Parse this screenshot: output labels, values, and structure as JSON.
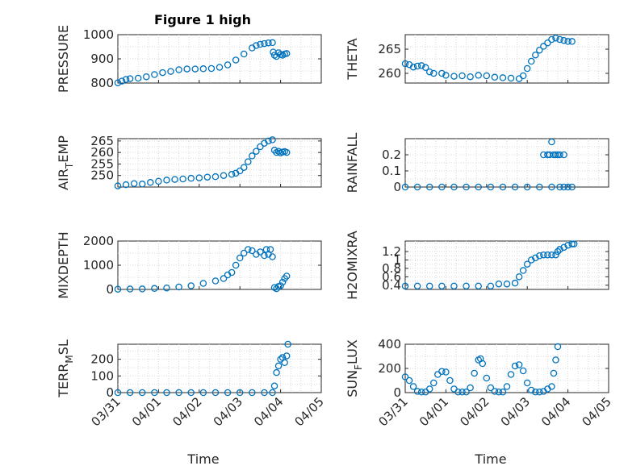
{
  "figure_title": "Figure 1 high",
  "colors": {
    "marker": "#0072bd",
    "axis": "#262626",
    "grid": "#d9d9d9"
  },
  "chart_data": [
    {
      "type": "scatter",
      "ylabel": "PRESSURE",
      "ylim": [
        800,
        1000
      ],
      "yticks": [
        "800",
        "900",
        "1000"
      ],
      "grid": true,
      "xlim": [
        "03/31",
        "04/05"
      ],
      "points": [
        [
          0.0,
          801
        ],
        [
          0.1,
          808
        ],
        [
          0.2,
          815
        ],
        [
          0.3,
          818
        ],
        [
          0.5,
          820
        ],
        [
          0.7,
          826
        ],
        [
          0.9,
          835
        ],
        [
          1.1,
          843
        ],
        [
          1.3,
          848
        ],
        [
          1.5,
          855
        ],
        [
          1.7,
          858
        ],
        [
          1.9,
          858
        ],
        [
          2.1,
          859
        ],
        [
          2.3,
          860
        ],
        [
          2.5,
          865
        ],
        [
          2.7,
          875
        ],
        [
          2.9,
          895
        ],
        [
          3.1,
          920
        ],
        [
          3.3,
          945
        ],
        [
          3.4,
          955
        ],
        [
          3.5,
          960
        ],
        [
          3.6,
          963
        ],
        [
          3.7,
          966
        ],
        [
          3.8,
          967
        ],
        [
          3.82,
          928
        ],
        [
          3.85,
          915
        ],
        [
          3.9,
          910
        ],
        [
          3.95,
          925
        ],
        [
          4.0,
          918
        ],
        [
          4.05,
          915
        ],
        [
          4.1,
          920
        ],
        [
          4.15,
          922
        ]
      ]
    },
    {
      "type": "scatter",
      "ylabel": "THETA",
      "ylim": [
        258,
        268
      ],
      "yticks": [
        "260",
        "265"
      ],
      "grid": true,
      "xlim": [
        "03/31",
        "04/05"
      ],
      "points": [
        [
          0.0,
          262
        ],
        [
          0.1,
          261.8
        ],
        [
          0.2,
          261.3
        ],
        [
          0.3,
          261.5
        ],
        [
          0.4,
          261.6
        ],
        [
          0.5,
          261.2
        ],
        [
          0.6,
          260.3
        ],
        [
          0.7,
          260.0
        ],
        [
          0.9,
          260.0
        ],
        [
          1.0,
          259.6
        ],
        [
          1.2,
          259.4
        ],
        [
          1.4,
          259.5
        ],
        [
          1.6,
          259.3
        ],
        [
          1.8,
          259.6
        ],
        [
          2.0,
          259.5
        ],
        [
          2.2,
          259.2
        ],
        [
          2.4,
          259.1
        ],
        [
          2.6,
          259.0
        ],
        [
          2.8,
          258.9
        ],
        [
          2.9,
          259.5
        ],
        [
          3.0,
          261.0
        ],
        [
          3.1,
          262.5
        ],
        [
          3.2,
          263.8
        ],
        [
          3.3,
          264.8
        ],
        [
          3.4,
          265.6
        ],
        [
          3.5,
          266.3
        ],
        [
          3.6,
          267.0
        ],
        [
          3.7,
          267.3
        ],
        [
          3.8,
          267.0
        ],
        [
          3.9,
          266.8
        ],
        [
          4.0,
          266.6
        ],
        [
          4.1,
          266.6
        ]
      ]
    },
    {
      "type": "scatter",
      "ylabel": "AIR_TEMP",
      "ylim": [
        245,
        266
      ],
      "yticks": [
        "250",
        "255",
        "260",
        "265"
      ],
      "grid": true,
      "xlim": [
        "03/31",
        "04/05"
      ],
      "points": [
        [
          0.0,
          245.5
        ],
        [
          0.2,
          246.0
        ],
        [
          0.4,
          246.5
        ],
        [
          0.6,
          246.3
        ],
        [
          0.8,
          247.0
        ],
        [
          1.0,
          247.5
        ],
        [
          1.2,
          248.0
        ],
        [
          1.4,
          248.3
        ],
        [
          1.6,
          248.5
        ],
        [
          1.8,
          248.8
        ],
        [
          2.0,
          249.0
        ],
        [
          2.2,
          249.3
        ],
        [
          2.4,
          249.5
        ],
        [
          2.6,
          250.0
        ],
        [
          2.8,
          250.5
        ],
        [
          2.9,
          251.0
        ],
        [
          3.0,
          252.0
        ],
        [
          3.1,
          253.5
        ],
        [
          3.2,
          256.0
        ],
        [
          3.3,
          258.5
        ],
        [
          3.4,
          260.5
        ],
        [
          3.5,
          262.5
        ],
        [
          3.6,
          264.0
        ],
        [
          3.7,
          265.0
        ],
        [
          3.8,
          265.5
        ],
        [
          3.85,
          261.0
        ],
        [
          3.9,
          260.0
        ],
        [
          3.95,
          260.5
        ],
        [
          4.0,
          259.8
        ],
        [
          4.05,
          260.2
        ],
        [
          4.1,
          260.4
        ],
        [
          4.15,
          260.0
        ]
      ]
    },
    {
      "type": "scatter",
      "ylabel": "RAINFALL",
      "ylim": [
        0,
        0.3
      ],
      "yticks": [
        "0",
        "0.1",
        "0.2"
      ],
      "grid": true,
      "xlim": [
        "03/31",
        "04/05"
      ],
      "points": [
        [
          0.0,
          0
        ],
        [
          0.3,
          0
        ],
        [
          0.6,
          0
        ],
        [
          0.9,
          0
        ],
        [
          1.2,
          0
        ],
        [
          1.5,
          0
        ],
        [
          1.8,
          0
        ],
        [
          2.1,
          0
        ],
        [
          2.4,
          0
        ],
        [
          2.7,
          0
        ],
        [
          3.0,
          0
        ],
        [
          3.3,
          0
        ],
        [
          3.4,
          0.2
        ],
        [
          3.5,
          0.2
        ],
        [
          3.55,
          0.2
        ],
        [
          3.6,
          0.28
        ],
        [
          3.65,
          0.2
        ],
        [
          3.7,
          0.2
        ],
        [
          3.75,
          0.2
        ],
        [
          3.8,
          0.2
        ],
        [
          3.9,
          0.2
        ],
        [
          3.6,
          0
        ],
        [
          3.8,
          0
        ],
        [
          3.9,
          0
        ],
        [
          4.0,
          0
        ],
        [
          4.1,
          0
        ]
      ]
    },
    {
      "type": "scatter",
      "ylabel": "MIXDEPTH",
      "ylim": [
        0,
        2000
      ],
      "yticks": [
        "0",
        "1000",
        "2000"
      ],
      "grid": true,
      "xlim": [
        "03/31",
        "04/05"
      ],
      "points": [
        [
          0.0,
          10
        ],
        [
          0.3,
          15
        ],
        [
          0.6,
          20
        ],
        [
          0.9,
          40
        ],
        [
          1.2,
          60
        ],
        [
          1.5,
          100
        ],
        [
          1.8,
          150
        ],
        [
          2.1,
          250
        ],
        [
          2.4,
          350
        ],
        [
          2.6,
          450
        ],
        [
          2.7,
          600
        ],
        [
          2.8,
          700
        ],
        [
          2.9,
          1000
        ],
        [
          3.0,
          1300
        ],
        [
          3.1,
          1500
        ],
        [
          3.2,
          1650
        ],
        [
          3.3,
          1600
        ],
        [
          3.4,
          1450
        ],
        [
          3.5,
          1550
        ],
        [
          3.6,
          1400
        ],
        [
          3.65,
          1650
        ],
        [
          3.7,
          1450
        ],
        [
          3.75,
          1650
        ],
        [
          3.8,
          1350
        ],
        [
          3.85,
          80
        ],
        [
          3.9,
          30
        ],
        [
          3.95,
          120
        ],
        [
          4.0,
          150
        ],
        [
          4.05,
          300
        ],
        [
          4.1,
          450
        ],
        [
          4.15,
          550
        ]
      ]
    },
    {
      "type": "scatter",
      "ylabel": "H2OMIXRA",
      "ylim": [
        0.3,
        1.45
      ],
      "yticks": [
        "0.4",
        "0.6",
        "0.8",
        "1",
        "1.2"
      ],
      "grid": true,
      "xlim": [
        "03/31",
        "04/05"
      ],
      "points": [
        [
          0.0,
          0.38
        ],
        [
          0.3,
          0.38
        ],
        [
          0.6,
          0.38
        ],
        [
          0.9,
          0.38
        ],
        [
          1.2,
          0.38
        ],
        [
          1.5,
          0.38
        ],
        [
          1.8,
          0.38
        ],
        [
          2.1,
          0.38
        ],
        [
          2.3,
          0.43
        ],
        [
          2.5,
          0.43
        ],
        [
          2.7,
          0.45
        ],
        [
          2.8,
          0.6
        ],
        [
          2.9,
          0.75
        ],
        [
          3.0,
          0.9
        ],
        [
          3.1,
          1.0
        ],
        [
          3.2,
          1.05
        ],
        [
          3.3,
          1.1
        ],
        [
          3.4,
          1.12
        ],
        [
          3.5,
          1.12
        ],
        [
          3.6,
          1.12
        ],
        [
          3.7,
          1.12
        ],
        [
          3.75,
          1.2
        ],
        [
          3.8,
          1.25
        ],
        [
          3.9,
          1.3
        ],
        [
          4.0,
          1.35
        ],
        [
          4.1,
          1.38
        ],
        [
          4.15,
          1.38
        ]
      ]
    },
    {
      "type": "scatter",
      "ylabel": "TERR_MSL",
      "ylim": [
        0,
        290
      ],
      "yticks": [
        "0",
        "100",
        "200"
      ],
      "grid": true,
      "xlim": [
        "03/31",
        "04/05"
      ],
      "xticks": [
        "03/31",
        "04/01",
        "04/02",
        "04/03",
        "04/04",
        "04/05"
      ],
      "xlabel": "Time",
      "points": [
        [
          0.0,
          0
        ],
        [
          0.3,
          0
        ],
        [
          0.6,
          0
        ],
        [
          0.9,
          0
        ],
        [
          1.2,
          0
        ],
        [
          1.5,
          0
        ],
        [
          1.8,
          0
        ],
        [
          2.1,
          0
        ],
        [
          2.4,
          0
        ],
        [
          2.7,
          0
        ],
        [
          3.0,
          0
        ],
        [
          3.3,
          0
        ],
        [
          3.6,
          0
        ],
        [
          3.8,
          0
        ],
        [
          3.85,
          40
        ],
        [
          3.9,
          120
        ],
        [
          3.95,
          160
        ],
        [
          4.0,
          200
        ],
        [
          4.05,
          210
        ],
        [
          4.1,
          180
        ],
        [
          4.15,
          220
        ],
        [
          4.18,
          290
        ]
      ]
    },
    {
      "type": "scatter",
      "ylabel": "SUN_FLUX",
      "ylim": [
        0,
        400
      ],
      "yticks": [
        "0",
        "200",
        "400"
      ],
      "grid": true,
      "xlim": [
        "03/31",
        "04/05"
      ],
      "xticks": [
        "03/31",
        "04/01",
        "04/02",
        "04/03",
        "04/04",
        "04/05"
      ],
      "xlabel": "Time",
      "points": [
        [
          0.0,
          130
        ],
        [
          0.1,
          100
        ],
        [
          0.2,
          50
        ],
        [
          0.3,
          10
        ],
        [
          0.4,
          5
        ],
        [
          0.5,
          5
        ],
        [
          0.6,
          30
        ],
        [
          0.7,
          80
        ],
        [
          0.8,
          150
        ],
        [
          0.9,
          175
        ],
        [
          1.0,
          170
        ],
        [
          1.1,
          100
        ],
        [
          1.2,
          30
        ],
        [
          1.3,
          5
        ],
        [
          1.4,
          5
        ],
        [
          1.5,
          5
        ],
        [
          1.6,
          40
        ],
        [
          1.7,
          160
        ],
        [
          1.8,
          270
        ],
        [
          1.85,
          280
        ],
        [
          1.9,
          240
        ],
        [
          2.0,
          120
        ],
        [
          2.1,
          40
        ],
        [
          2.2,
          10
        ],
        [
          2.3,
          5
        ],
        [
          2.4,
          5
        ],
        [
          2.5,
          50
        ],
        [
          2.6,
          150
        ],
        [
          2.7,
          220
        ],
        [
          2.8,
          230
        ],
        [
          2.9,
          180
        ],
        [
          3.0,
          80
        ],
        [
          3.1,
          20
        ],
        [
          3.2,
          5
        ],
        [
          3.3,
          5
        ],
        [
          3.4,
          10
        ],
        [
          3.5,
          30
        ],
        [
          3.6,
          50
        ],
        [
          3.65,
          160
        ],
        [
          3.7,
          270
        ],
        [
          3.75,
          380
        ]
      ]
    }
  ]
}
